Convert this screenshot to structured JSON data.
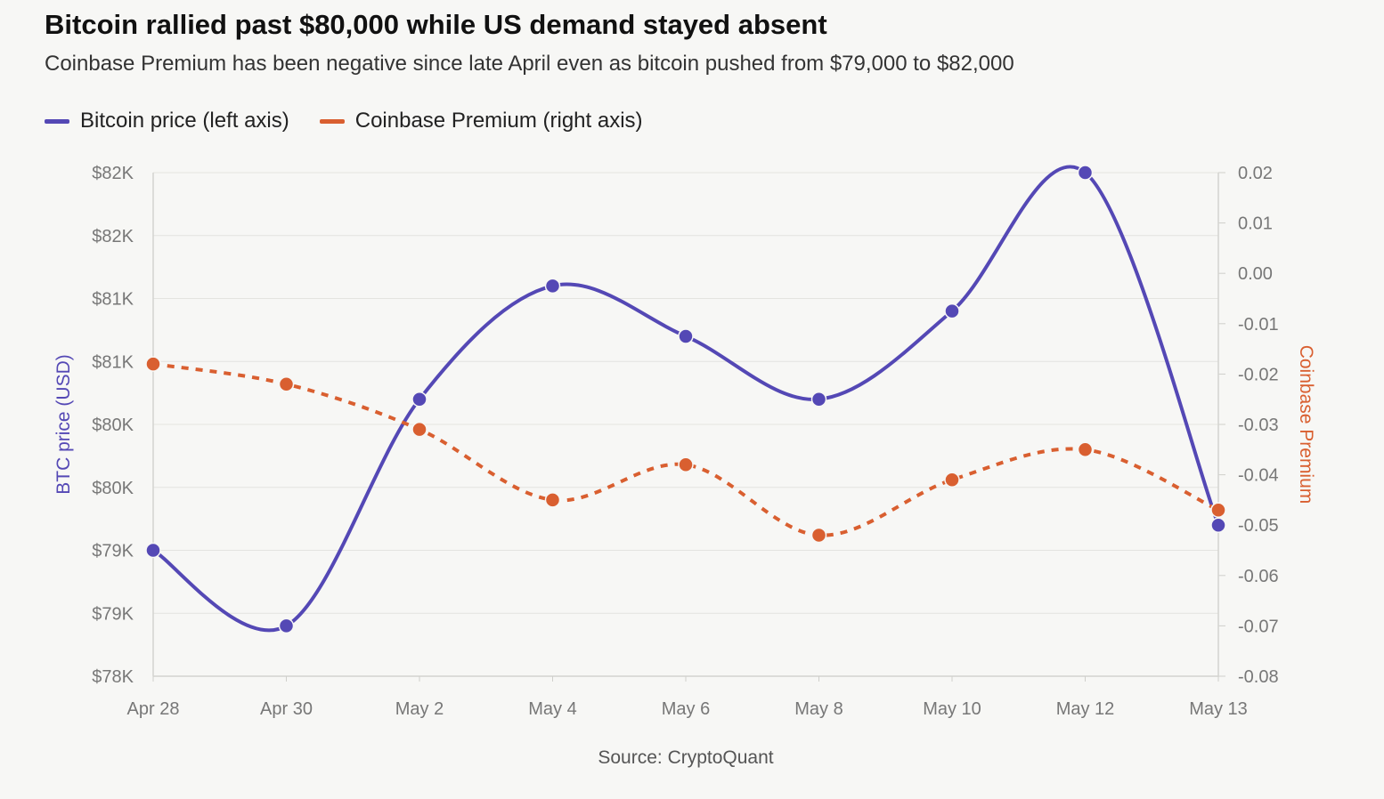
{
  "title": "Bitcoin rallied past $80,000 while US demand stayed absent",
  "subtitle": "Coinbase Premium has been negative since late April even as bitcoin pushed from $79,000 to $82,000",
  "source": "Source: CryptoQuant",
  "legend": [
    {
      "label": "Bitcoin price (left axis)",
      "color": "#5448b5"
    },
    {
      "label": "Coinbase Premium (right axis)",
      "color": "#d95f30"
    }
  ],
  "chart_data": {
    "type": "line",
    "categories": [
      "Apr 28",
      "Apr 30",
      "May 2",
      "May 4",
      "May 6",
      "May 8",
      "May 10",
      "May 12",
      "May 13"
    ],
    "y_left": {
      "label": "BTC price (USD)",
      "ylim": [
        78000,
        82000
      ],
      "ticks": [
        78000,
        78500,
        79000,
        79500,
        80000,
        80500,
        81000,
        81500,
        82000
      ],
      "tick_labels": [
        "$78K",
        "$79K",
        "$79K",
        "$80K",
        "$80K",
        "$81K",
        "$81K",
        "$82K",
        "$82K"
      ]
    },
    "y_right": {
      "label": "Coinbase Premium",
      "ylim": [
        -0.08,
        0.02
      ],
      "ticks": [
        -0.08,
        -0.07,
        -0.06,
        -0.05,
        -0.04,
        -0.03,
        -0.02,
        -0.01,
        0.0,
        0.01,
        0.02
      ],
      "tick_labels": [
        "-0.08",
        "-0.07",
        "-0.06",
        "-0.05",
        "-0.04",
        "-0.03",
        "-0.02",
        "-0.01",
        "0.00",
        "0.01",
        "0.02"
      ]
    },
    "series": [
      {
        "name": "Bitcoin price (left axis)",
        "axis": "left",
        "color": "#5448b5",
        "style": "solid",
        "values": [
          79000,
          78400,
          80200,
          81100,
          80700,
          80200,
          80900,
          82000,
          79200
        ]
      },
      {
        "name": "Coinbase Premium (right axis)",
        "axis": "right",
        "color": "#d95f30",
        "style": "dashed",
        "values": [
          -0.018,
          -0.022,
          -0.031,
          -0.045,
          -0.038,
          -0.052,
          -0.041,
          -0.035,
          -0.047
        ]
      }
    ],
    "grid": true,
    "legend_position": "top-left"
  }
}
